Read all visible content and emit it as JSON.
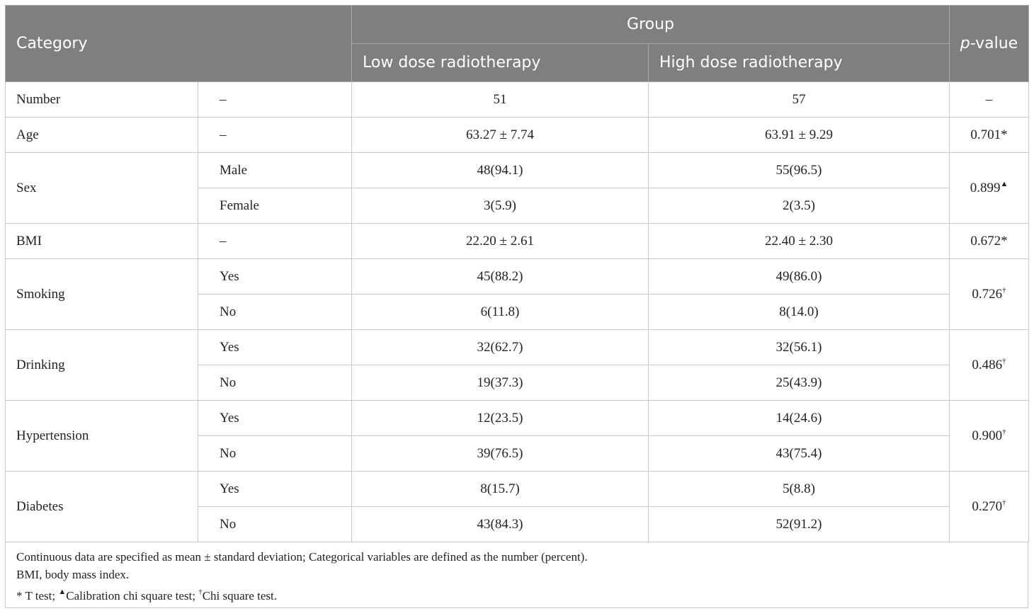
{
  "table": {
    "header": {
      "category": "Category",
      "group": "Group",
      "groups": [
        "Low dose radiotherapy",
        "High dose radiotherapy"
      ],
      "p_value": {
        "italic": "p",
        "rest": "-value"
      }
    },
    "rows": [
      {
        "category": "Number",
        "items": [
          {
            "sub": "–",
            "low": "51",
            "high": "57"
          }
        ],
        "p": {
          "text": "–"
        }
      },
      {
        "category": "Age",
        "items": [
          {
            "sub": "–",
            "low": "63.27 ± 7.74",
            "high": "63.91 ± 9.29"
          }
        ],
        "p": {
          "text": "0.701*"
        }
      },
      {
        "category": "Sex",
        "items": [
          {
            "sub": "Male",
            "low": "48(94.1)",
            "high": "55(96.5)"
          },
          {
            "sub": "Female",
            "low": "3(5.9)",
            "high": "2(3.5)"
          }
        ],
        "p": {
          "text": "0.899",
          "sup": "▲"
        }
      },
      {
        "category": "BMI",
        "items": [
          {
            "sub": "–",
            "low": "22.20 ± 2.61",
            "high": "22.40 ± 2.30"
          }
        ],
        "p": {
          "text": "0.672*"
        }
      },
      {
        "category": "Smoking",
        "items": [
          {
            "sub": "Yes",
            "low": "45(88.2)",
            "high": "49(86.0)"
          },
          {
            "sub": "No",
            "low": "6(11.8)",
            "high": "8(14.0)"
          }
        ],
        "p": {
          "text": "0.726",
          "sup": "†"
        }
      },
      {
        "category": "Drinking",
        "items": [
          {
            "sub": "Yes",
            "low": "32(62.7)",
            "high": "32(56.1)"
          },
          {
            "sub": "No",
            "low": "19(37.3)",
            "high": "25(43.9)"
          }
        ],
        "p": {
          "text": "0.486",
          "sup": "†"
        }
      },
      {
        "category": "Hypertension",
        "items": [
          {
            "sub": "Yes",
            "low": "12(23.5)",
            "high": "14(24.6)"
          },
          {
            "sub": "No",
            "low": "39(76.5)",
            "high": "43(75.4)"
          }
        ],
        "p": {
          "text": "0.900",
          "sup": "†"
        }
      },
      {
        "category": "Diabetes",
        "items": [
          {
            "sub": "Yes",
            "low": "8(15.7)",
            "high": "5(8.8)"
          },
          {
            "sub": "No",
            "low": "43(84.3)",
            "high": "52(91.2)"
          }
        ],
        "p": {
          "text": "0.270",
          "sup": "†"
        }
      }
    ],
    "notes": [
      [
        {
          "text": "Continuous data are specified as mean ± standard deviation; Categorical variables are defined as the number (percent)."
        }
      ],
      [
        {
          "text": "BMI, body mass index."
        }
      ],
      [
        {
          "text": "* T test; "
        },
        {
          "sup": "▲"
        },
        {
          "text": "Calibration chi square test; "
        },
        {
          "sup": "†"
        },
        {
          "text": "Chi square test."
        }
      ]
    ]
  }
}
